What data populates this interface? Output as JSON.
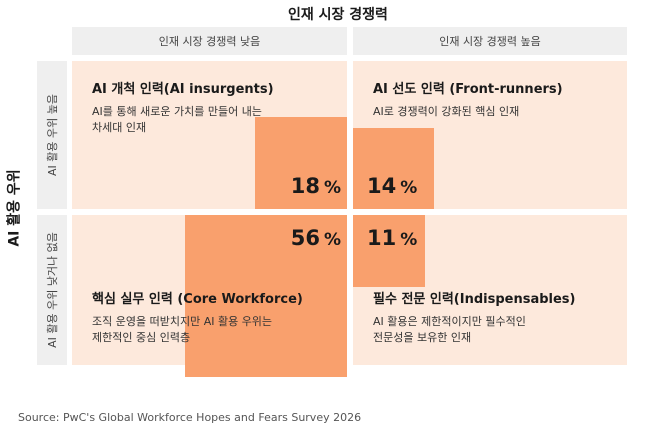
{
  "chart_data": {
    "type": "quadrant",
    "x_axis_title": "인재 시장 경쟁력",
    "x_axis_categories": [
      "인재 시장 경쟁력 낮음",
      "인재 시장 경쟁력 높음"
    ],
    "y_axis_title": "AI 활용 우위",
    "y_axis_categories": [
      "AI 활용 우위 높음",
      "AI 활용 우위 낮거나 없음"
    ],
    "quadrants": [
      {
        "title": "AI 개척 인력(AI insurgents)",
        "desc_lines": [
          "AI를 통해 새로운 가치를 만들어 내는",
          "차세대 인재"
        ],
        "value": 18,
        "unit": "%"
      },
      {
        "title": "AI 선도 인력 (Front-runners)",
        "desc_lines": [
          "AI로 경쟁력이 강화된 핵심 인재"
        ],
        "value": 14,
        "unit": "%"
      },
      {
        "title": "핵심 실무 인력 (Core Workforce)",
        "desc_lines": [
          "조직 운영을 떠받치지만 AI 활용 우위는",
          "제한적인 중심 인력층"
        ],
        "value": 56,
        "unit": "%"
      },
      {
        "title": "필수 전문 인력(Indispensables)",
        "desc_lines": [
          "AI 활용은 제한적이지만 필수적인",
          "전문성을 보유한 인재"
        ],
        "value": 11,
        "unit": "%"
      }
    ],
    "colors": {
      "quadrant_bg": "#fde9dc",
      "value_box": "#f9a06d",
      "header_bg": "#efefef"
    }
  },
  "source": "Source: PwC's Global Workforce Hopes and Fears Survey 2026"
}
